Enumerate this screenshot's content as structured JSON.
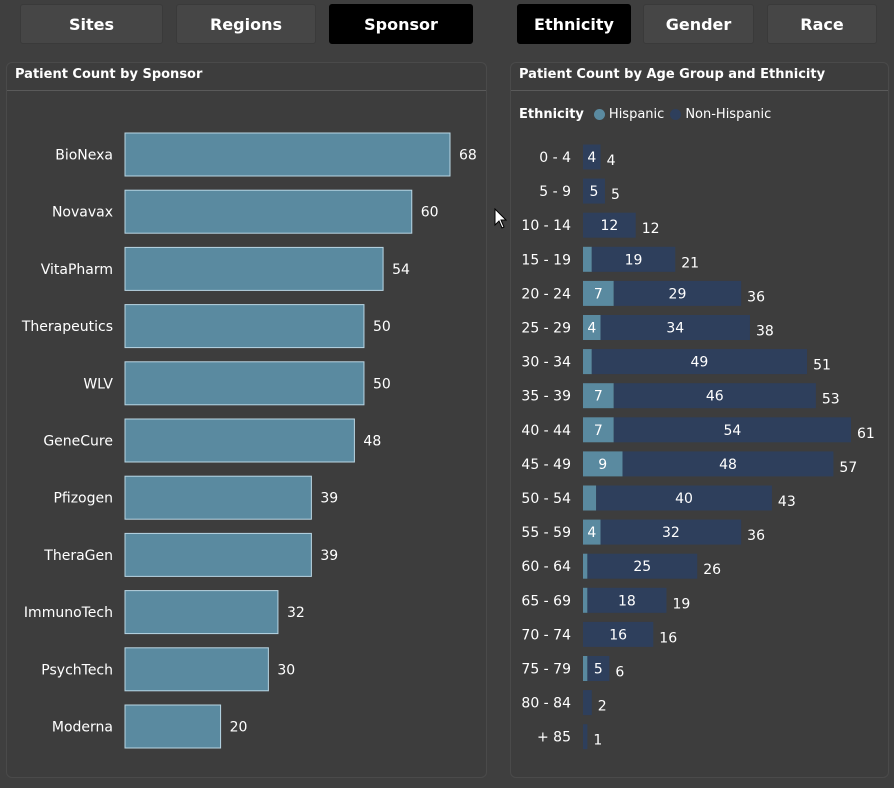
{
  "tabs": [
    {
      "label": "Sites",
      "active": false
    },
    {
      "label": "Regions",
      "active": false
    },
    {
      "label": "Sponsor",
      "active": true
    },
    {
      "label": "Ethnicity",
      "active": true
    },
    {
      "label": "Gender",
      "active": false
    },
    {
      "label": "Race",
      "active": false
    }
  ],
  "colors": {
    "background": "#3f3f3f",
    "bar_blue": "#5a8aa0",
    "hispanic": "#5a8aa0",
    "non_hispanic": "#2e3f5c",
    "active_tab": "#000000"
  },
  "chart_data": [
    {
      "type": "bar",
      "orientation": "horizontal",
      "title": "Patient Count by Sponsor",
      "categories": [
        "BioNexa",
        "Novavax",
        "VitaPharm",
        "Therapeutics",
        "WLV",
        "GeneCure",
        "Pfizogen",
        "TheraGen",
        "ImmunoTech",
        "PsychTech",
        "Moderna"
      ],
      "values": [
        68,
        60,
        54,
        50,
        50,
        48,
        39,
        39,
        32,
        30,
        20
      ],
      "xlim": [
        0,
        68
      ]
    },
    {
      "type": "bar",
      "orientation": "horizontal",
      "stacked": true,
      "title": "Patient Count by Age Group and Ethnicity",
      "legend_title": "Ethnicity",
      "legend_position": "top-left",
      "categories": [
        "0 - 4",
        "5 - 9",
        "10 - 14",
        "15 - 19",
        "20 - 24",
        "25 - 29",
        "30 - 34",
        "35 - 39",
        "40 - 44",
        "45 - 49",
        "50 - 54",
        "55 - 59",
        "60 - 64",
        "65 - 69",
        "70 - 74",
        "75 - 79",
        "80 - 84",
        "+ 85"
      ],
      "series": [
        {
          "name": "Hispanic",
          "values": [
            0,
            0,
            0,
            2,
            7,
            4,
            2,
            7,
            7,
            9,
            3,
            4,
            1,
            1,
            0,
            1,
            0,
            0
          ],
          "labels": [
            "",
            "",
            "",
            "",
            "7",
            "4",
            "",
            "7",
            "7",
            "9",
            "",
            "4",
            "",
            "",
            "",
            "",
            "",
            ""
          ]
        },
        {
          "name": "Non-Hispanic",
          "values": [
            4,
            5,
            12,
            19,
            29,
            34,
            49,
            46,
            54,
            48,
            40,
            32,
            25,
            18,
            16,
            5,
            2,
            1
          ],
          "labels": [
            "4",
            "5",
            "12",
            "19",
            "29",
            "34",
            "49",
            "46",
            "54",
            "48",
            "40",
            "32",
            "25",
            "18",
            "16",
            "5",
            "",
            ""
          ]
        }
      ],
      "totals": [
        4,
        5,
        12,
        21,
        36,
        38,
        51,
        53,
        61,
        57,
        43,
        36,
        26,
        19,
        16,
        6,
        2,
        1
      ],
      "xlim": [
        0,
        61
      ]
    }
  ]
}
